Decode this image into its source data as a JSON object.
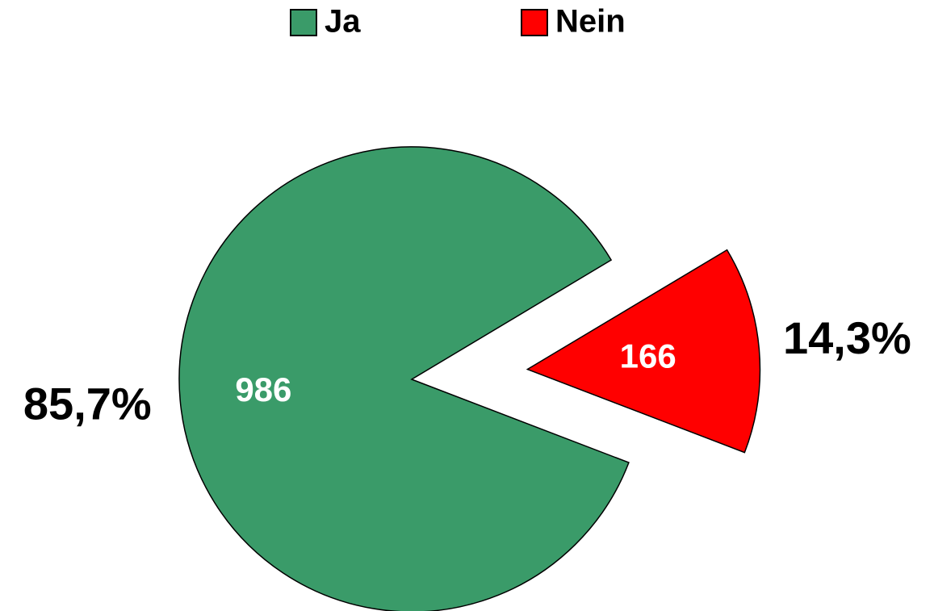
{
  "chart_data": {
    "type": "pie",
    "categories": [
      "Ja",
      "Nein"
    ],
    "values": [
      986,
      166
    ],
    "colors": [
      "#3a9b69",
      "#ff0000"
    ],
    "percentages": [
      85.7,
      14.3
    ],
    "percentage_labels": [
      "85,7%",
      "14,3%"
    ],
    "exploded": [
      false,
      true
    ],
    "legend": "top"
  }
}
